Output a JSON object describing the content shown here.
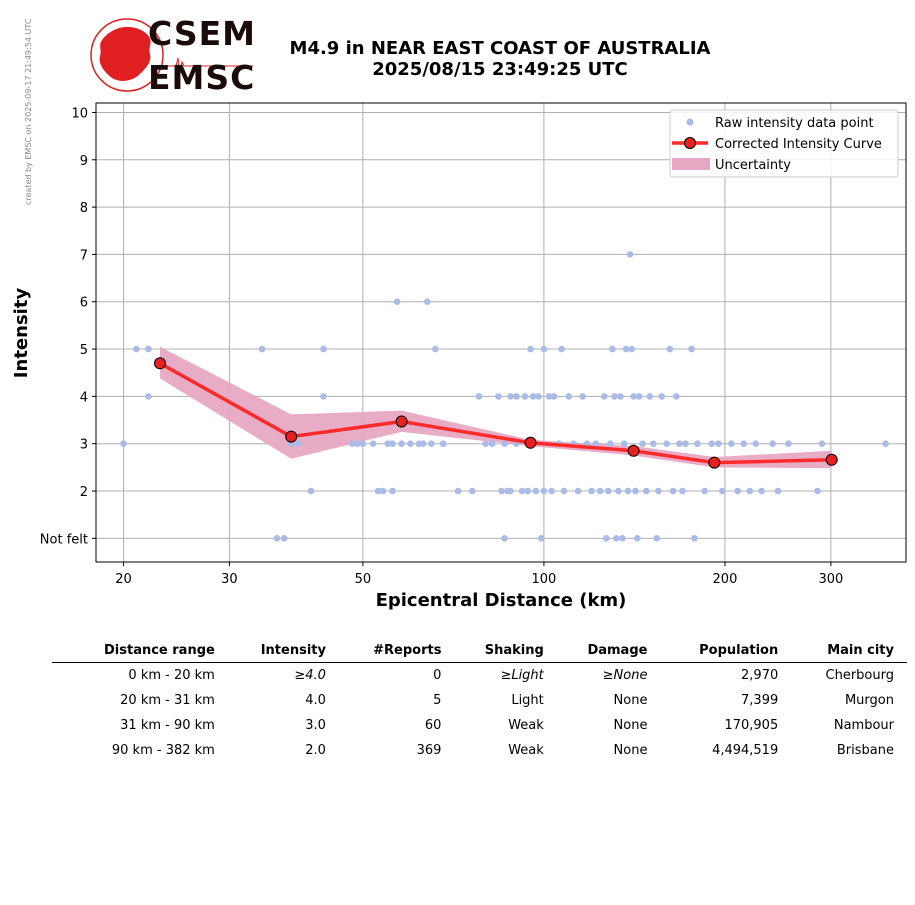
{
  "watermark": "created by EMSC on 2025-09-17 21:49:54 UTC",
  "logo": {
    "top": "CSEM",
    "bottom": "EMSC"
  },
  "title_line1": "M4.9 in NEAR EAST COAST OF AUSTRALIA",
  "title_line2": "2025/08/15 23:49:25 UTC",
  "chart_data": {
    "type": "scatter",
    "xscale": "log",
    "xlabel": "Epicentral Distance (km)",
    "ylabel": "Intensity",
    "xlim": [
      18,
      400
    ],
    "ylim": [
      0.5,
      10.2
    ],
    "x_ticks": [
      20,
      30,
      50,
      100,
      200,
      300
    ],
    "y_ticks": [
      1,
      2,
      3,
      4,
      5,
      6,
      7,
      8,
      9,
      10
    ],
    "y_tick_labels": [
      "Not felt",
      "2",
      "3",
      "4",
      "5",
      "6",
      "7",
      "8",
      "9",
      "10"
    ],
    "grid": true,
    "legend_position": "top-right",
    "legend": [
      "Raw intensity data point",
      "Corrected Intensity Curve",
      "Uncertainty"
    ],
    "raw_points": [
      [
        20,
        3
      ],
      [
        21,
        5
      ],
      [
        22,
        5
      ],
      [
        22,
        4
      ],
      [
        34,
        5
      ],
      [
        36,
        1
      ],
      [
        37,
        1
      ],
      [
        38,
        3
      ],
      [
        39,
        3
      ],
      [
        41,
        2
      ],
      [
        43,
        5
      ],
      [
        43,
        4
      ],
      [
        48,
        3
      ],
      [
        49,
        3
      ],
      [
        50,
        3
      ],
      [
        52,
        3
      ],
      [
        53,
        2
      ],
      [
        54,
        2
      ],
      [
        55,
        3
      ],
      [
        56,
        3
      ],
      [
        56,
        2
      ],
      [
        57,
        6
      ],
      [
        58,
        3
      ],
      [
        60,
        3
      ],
      [
        62,
        3
      ],
      [
        63,
        3
      ],
      [
        64,
        6
      ],
      [
        65,
        3
      ],
      [
        66,
        5
      ],
      [
        68,
        3
      ],
      [
        72,
        2
      ],
      [
        76,
        2
      ],
      [
        78,
        4
      ],
      [
        80,
        3
      ],
      [
        82,
        3
      ],
      [
        84,
        4
      ],
      [
        85,
        2
      ],
      [
        86,
        3
      ],
      [
        86,
        1
      ],
      [
        87,
        2
      ],
      [
        88,
        4
      ],
      [
        88,
        2
      ],
      [
        90,
        4
      ],
      [
        90,
        3
      ],
      [
        92,
        2
      ],
      [
        93,
        4
      ],
      [
        94,
        2
      ],
      [
        95,
        5
      ],
      [
        96,
        4
      ],
      [
        97,
        2
      ],
      [
        98,
        4
      ],
      [
        99,
        1
      ],
      [
        100,
        5
      ],
      [
        100,
        2
      ],
      [
        102,
        4
      ],
      [
        103,
        2
      ],
      [
        104,
        4
      ],
      [
        106,
        3
      ],
      [
        107,
        5
      ],
      [
        108,
        2
      ],
      [
        110,
        4
      ],
      [
        112,
        3
      ],
      [
        114,
        2
      ],
      [
        116,
        4
      ],
      [
        118,
        3
      ],
      [
        120,
        2
      ],
      [
        122,
        3
      ],
      [
        124,
        2
      ],
      [
        126,
        4
      ],
      [
        127,
        1
      ],
      [
        128,
        2
      ],
      [
        129,
        3
      ],
      [
        130,
        5
      ],
      [
        131,
        4
      ],
      [
        132,
        1
      ],
      [
        133,
        2
      ],
      [
        134,
        4
      ],
      [
        135,
        1
      ],
      [
        136,
        3
      ],
      [
        137,
        5
      ],
      [
        138,
        2
      ],
      [
        139,
        7
      ],
      [
        140,
        5
      ],
      [
        141,
        4
      ],
      [
        142,
        2
      ],
      [
        143,
        1
      ],
      [
        144,
        4
      ],
      [
        146,
        3
      ],
      [
        148,
        2
      ],
      [
        150,
        4
      ],
      [
        152,
        3
      ],
      [
        154,
        1
      ],
      [
        155,
        2
      ],
      [
        157,
        4
      ],
      [
        160,
        3
      ],
      [
        162,
        5
      ],
      [
        164,
        2
      ],
      [
        166,
        4
      ],
      [
        168,
        3
      ],
      [
        170,
        2
      ],
      [
        172,
        3
      ],
      [
        176,
        5
      ],
      [
        178,
        1
      ],
      [
        180,
        3
      ],
      [
        185,
        2
      ],
      [
        190,
        3
      ],
      [
        195,
        3
      ],
      [
        198,
        2
      ],
      [
        205,
        3
      ],
      [
        210,
        2
      ],
      [
        215,
        3
      ],
      [
        220,
        2
      ],
      [
        225,
        3
      ],
      [
        230,
        2
      ],
      [
        240,
        3
      ],
      [
        245,
        2
      ],
      [
        255,
        3
      ],
      [
        285,
        2
      ],
      [
        290,
        3
      ],
      [
        370,
        3
      ]
    ],
    "curve": {
      "x": [
        23,
        38,
        58,
        95,
        141,
        192,
        301
      ],
      "y": [
        4.7,
        3.15,
        3.47,
        3.02,
        2.85,
        2.6,
        2.66
      ]
    },
    "uncertainty": {
      "x": [
        23,
        38,
        58,
        95,
        141,
        192,
        301
      ],
      "upper": [
        5.05,
        3.62,
        3.7,
        3.08,
        2.95,
        2.72,
        2.85
      ],
      "lower": [
        4.38,
        2.68,
        3.25,
        2.95,
        2.75,
        2.5,
        2.48
      ]
    }
  },
  "table": {
    "headers": [
      "Distance range",
      "Intensity",
      "#Reports",
      "Shaking",
      "Damage",
      "Population",
      "Main city"
    ],
    "rows": [
      [
        "0 km -   20 km",
        "≥4.0",
        "0",
        "≥Light",
        "≥None",
        "2,970",
        "Cherbourg"
      ],
      [
        "20 km -   31 km",
        "4.0",
        "5",
        "Light",
        "None",
        "7,399",
        "Murgon"
      ],
      [
        "31 km -   90 km",
        "3.0",
        "60",
        "Weak",
        "None",
        "170,905",
        "Nambour"
      ],
      [
        "90 km -  382 km",
        "2.0",
        "369",
        "Weak",
        "None",
        "4,494,519",
        "Brisbane"
      ]
    ]
  },
  "colors": {
    "raw": "#aabbe8",
    "curve": "#ff2a2a",
    "marker": "#e82020",
    "band": "#e8a8c4",
    "grid": "#b0b0b0"
  }
}
